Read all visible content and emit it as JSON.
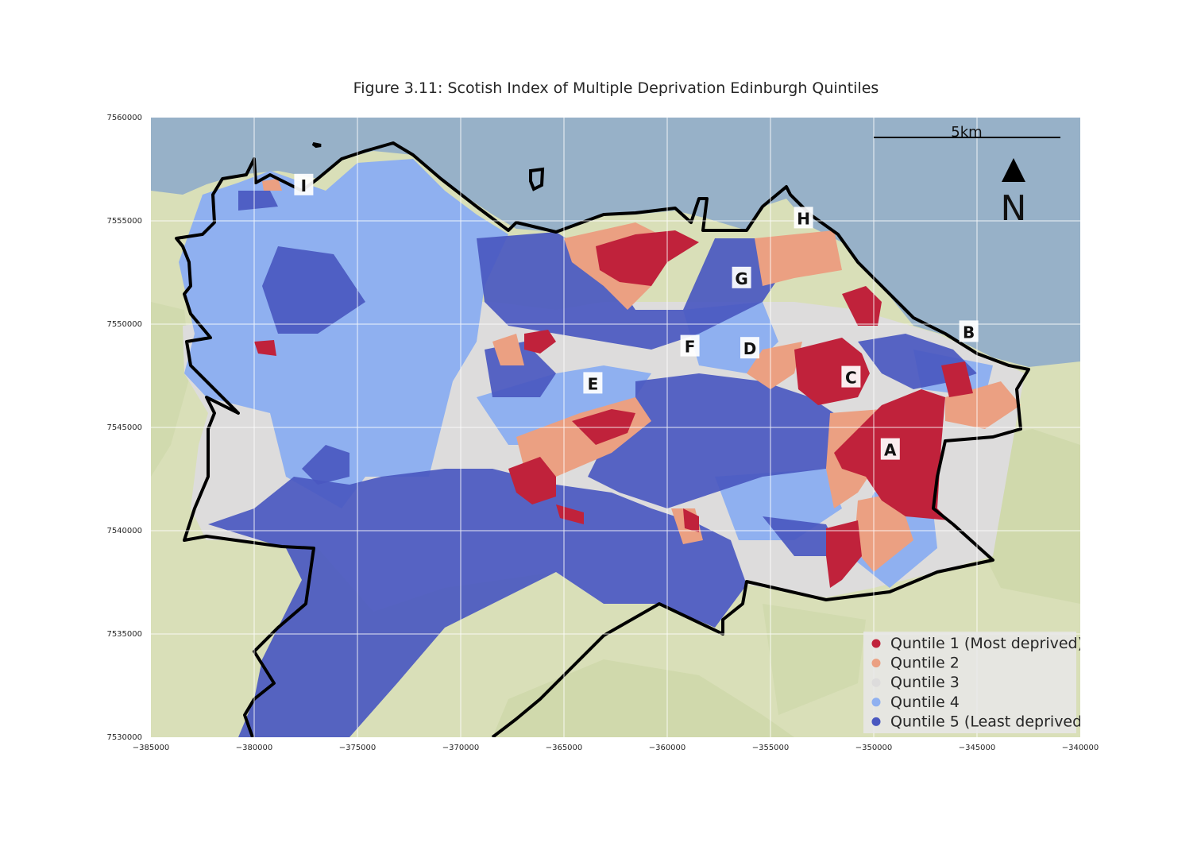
{
  "title": "Figure 3.11: Scotish Index of Multiple Deprivation Edinburgh Quintiles",
  "axes": {
    "x_ticks": [
      "−385000",
      "−380000",
      "−375000",
      "−370000",
      "−365000",
      "−360000",
      "−355000",
      "−350000",
      "−345000",
      "−340000"
    ],
    "y_ticks": [
      "7560000",
      "7555000",
      "7550000",
      "7545000",
      "7540000",
      "7535000",
      "7530000"
    ],
    "xlim": [
      -385000,
      -340000
    ],
    "ylim": [
      7530000,
      7560000
    ],
    "grid": true
  },
  "scale_bar": {
    "label": "5km",
    "length_m": 5000
  },
  "north_arrow": {
    "label": "N"
  },
  "area_markers": [
    {
      "label": "A",
      "x": -349200,
      "y": 7543900
    },
    {
      "label": "B",
      "x": -345400,
      "y": 7549600
    },
    {
      "label": "C",
      "x": -351100,
      "y": 7547400
    },
    {
      "label": "D",
      "x": -356000,
      "y": 7548800
    },
    {
      "label": "E",
      "x": -363600,
      "y": 7547100
    },
    {
      "label": "F",
      "x": -358900,
      "y": 7548900
    },
    {
      "label": "G",
      "x": -356400,
      "y": 7552200
    },
    {
      "label": "H",
      "x": -353400,
      "y": 7555100
    },
    {
      "label": "I",
      "x": -377600,
      "y": 7556700
    }
  ],
  "legend": {
    "placement": "bottom-right",
    "items": [
      {
        "label": "Quntile 1 (Most deprived)",
        "color": "#c0223b"
      },
      {
        "label": "Quntile 2",
        "color": "#eba082"
      },
      {
        "label": "Quntile 3",
        "color": "#dddcdc"
      },
      {
        "label": "Quntile 4",
        "color": "#8fb0f0"
      },
      {
        "label": "Quntile 5 (Least deprived)",
        "color": "#4a58c0"
      }
    ]
  },
  "colors": {
    "sea": "#97b1c8",
    "land": "#d9dfb8",
    "boundary": "#000000"
  }
}
